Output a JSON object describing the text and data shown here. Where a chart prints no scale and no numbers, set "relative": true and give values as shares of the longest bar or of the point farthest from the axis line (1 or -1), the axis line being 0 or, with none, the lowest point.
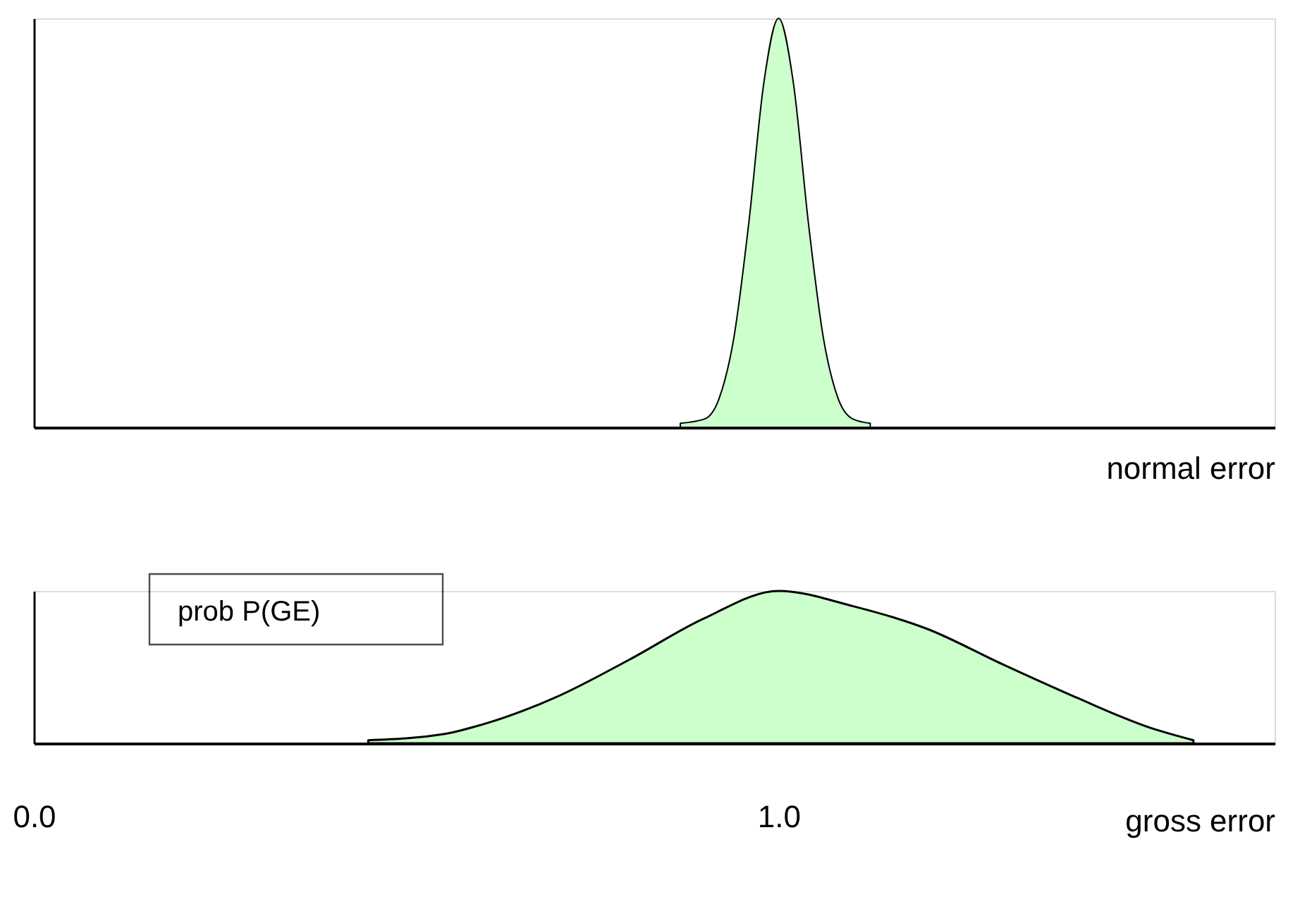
{
  "chart_data": [
    {
      "type": "area",
      "relative": true,
      "xlabel": "normal error",
      "xlim": [
        0,
        1.666
      ],
      "tick_labels": false,
      "grid": false,
      "legend": false,
      "series": [
        {
          "color": "#ccffcc",
          "x": [
            0.868,
            0.9,
            0.92,
            0.94,
            0.96,
            0.98,
            1.0,
            1.02,
            1.04,
            1.06,
            1.08,
            1.1,
            1.123
          ],
          "values": [
            0.01,
            0.02,
            0.07,
            0.22,
            0.5,
            0.84,
            1,
            0.84,
            0.5,
            0.22,
            0.07,
            0.02,
            0.01
          ]
        }
      ]
    },
    {
      "type": "area",
      "relative": true,
      "xlabel": "gross error",
      "xlim": [
        0,
        1.666
      ],
      "xticks": [
        {
          "value": 0,
          "label": "0.0"
        },
        {
          "value": 1,
          "label": "1.0"
        }
      ],
      "tick_labels": "x",
      "grid": false,
      "legend": false,
      "annotations": [
        "prob  P(GE)"
      ],
      "series": [
        {
          "color": "#ccffcc",
          "x": [
            0.449,
            0.55,
            0.6,
            0.7,
            0.8,
            0.9,
            1.0,
            1.1,
            1.2,
            1.3,
            1.4,
            1.5,
            1.557
          ],
          "values": [
            0.02,
            0.06,
            0.12,
            0.3,
            0.55,
            0.82,
            1,
            0.9,
            0.75,
            0.52,
            0.3,
            0.1,
            0.02
          ]
        }
      ]
    }
  ]
}
